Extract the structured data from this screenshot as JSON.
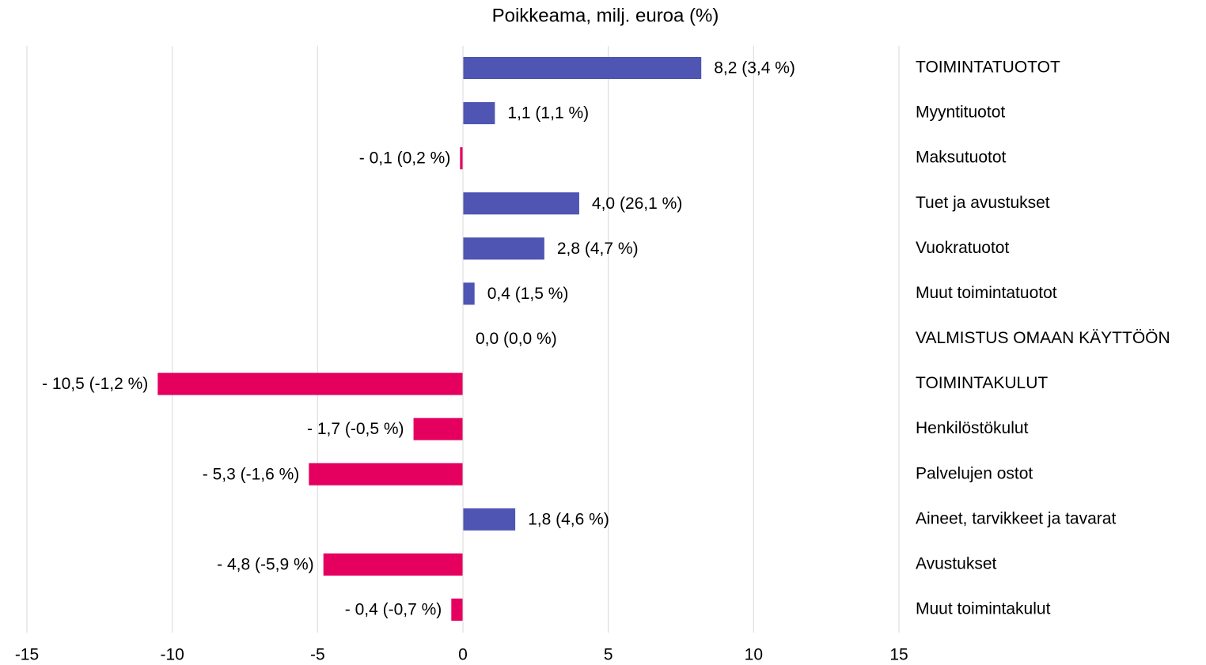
{
  "chart_data": {
    "type": "hbar",
    "title": "Poikkeama, milj. euroa (%)",
    "categories": [
      "TOIMINTATUOTOT",
      "Myyntituotot",
      "Maksutuotot",
      "Tuet ja avustukset",
      "Vuokratuotot",
      "Muut toimintatuotot",
      "VALMISTUS OMAAN KÄYTTÖÖN",
      "TOIMINTAKULUT",
      "Henkilöstökulut",
      "Palvelujen ostot",
      "Aineet, tarvikkeet ja tavarat",
      "Avustukset",
      "Muut toimintakulut"
    ],
    "values": [
      8.2,
      1.1,
      -0.1,
      4.0,
      2.8,
      0.4,
      0.0,
      -10.5,
      -1.7,
      -5.3,
      1.8,
      -4.8,
      -0.4
    ],
    "value_labels": [
      "8,2 (3,4 %)",
      "1,1 (1,1 %)",
      "- 0,1 (0,2 %)",
      "4,0 (26,1 %)",
      "2,8 (4,7 %)",
      "0,4 (1,5 %)",
      "0,0 (0,0 %)",
      "- 10,5 (-1,2 %)",
      "- 1,7 (-0,5 %)",
      "- 5,3 (-1,6 %)",
      "1,8 (4,6 %)",
      "- 4,8 (-5,9 %)",
      "- 0,4 (-0,7 %)"
    ],
    "positive_color": "#4f55b3",
    "negative_color": "#e5005f",
    "xlim": [
      -15,
      15
    ],
    "xticks": [
      -15,
      -10,
      -5,
      0,
      5,
      10,
      15
    ],
    "grid": true
  }
}
